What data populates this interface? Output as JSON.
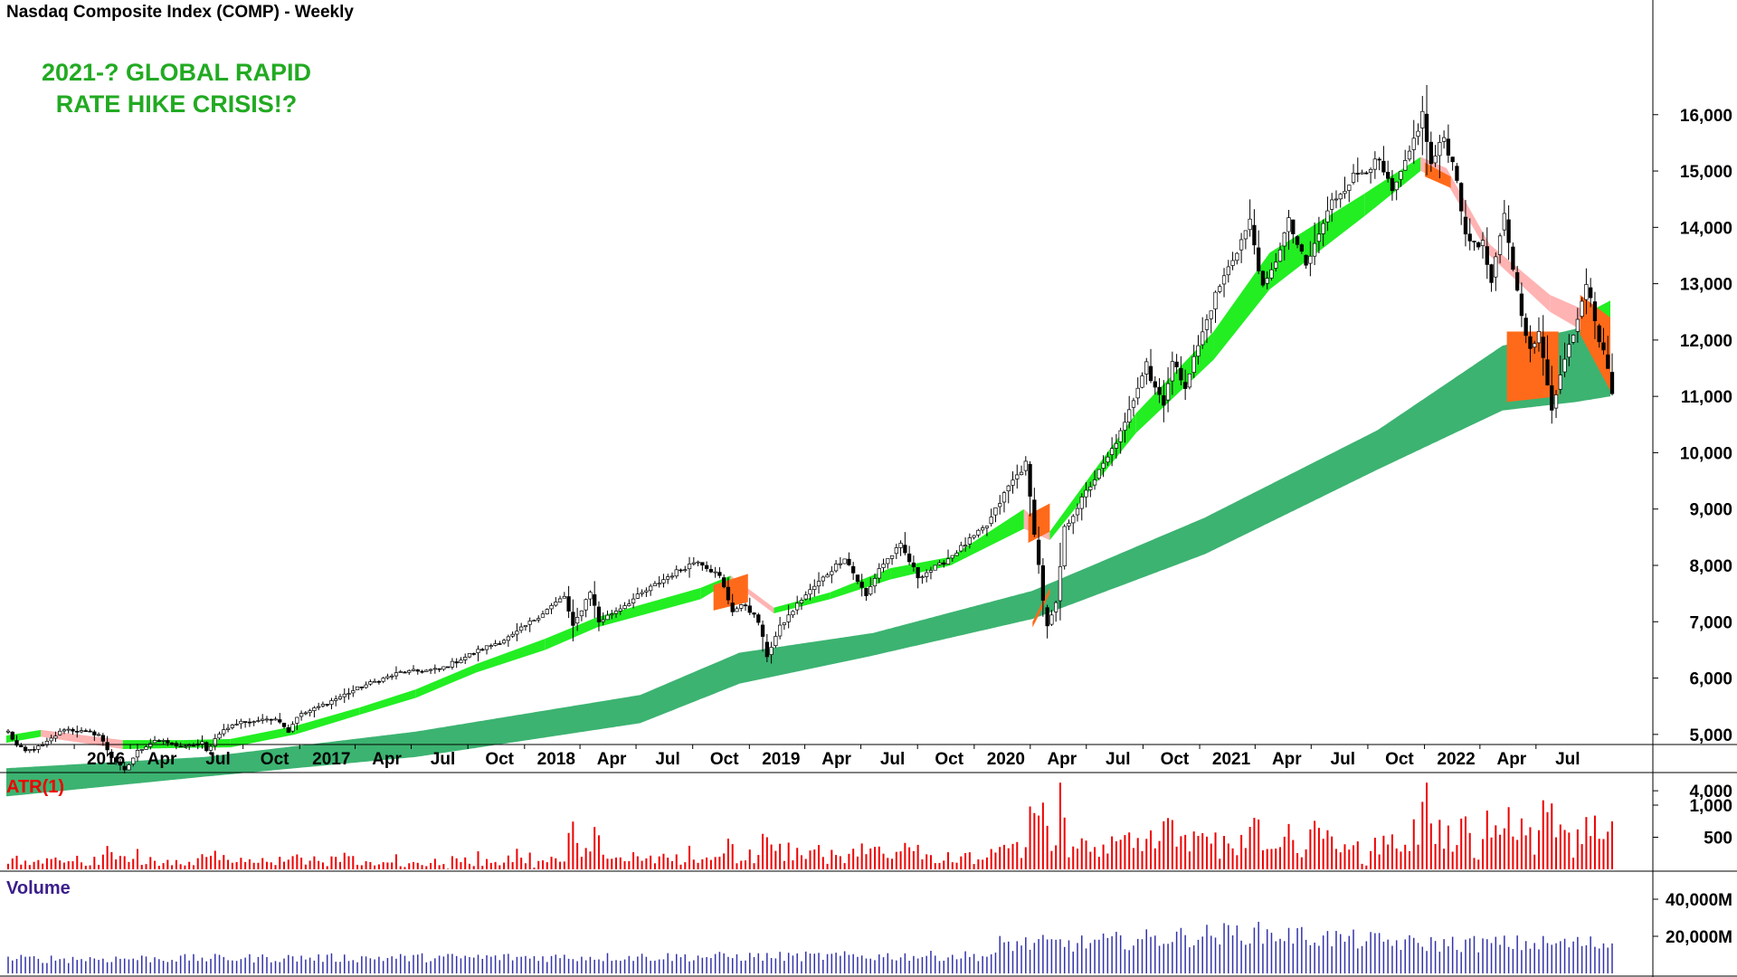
{
  "header": {
    "title": "Nasdaq Composite Index (COMP) - Weekly",
    "annotation_line1": "2021-? GLOBAL RAPID",
    "annotation_line2": "RATE HIKE CRISIS!?"
  },
  "colors": {
    "candle_up": "#ffffff",
    "candle_down": "#000000",
    "short_band_up": "#22ee22",
    "short_band_down": "#ffb3b3",
    "long_band_up": "#3cb371",
    "band_transition": "#ff6a1a",
    "atr_bars": "#ee0000",
    "volume_bars": "#3333aa",
    "annotation": "#22aa22",
    "atr_label": "#ee0000",
    "volume_label": "#3b1e8c"
  },
  "chart_data": [
    {
      "type": "candlestick",
      "title": "Nasdaq Composite Index (COMP) - Weekly",
      "x_tick_labels": [
        "2016",
        "Apr",
        "Jul",
        "Oct",
        "2017",
        "Apr",
        "Jul",
        "Oct",
        "2018",
        "Apr",
        "Jul",
        "Oct",
        "2019",
        "Apr",
        "Jul",
        "Oct",
        "2020",
        "Apr",
        "Jul",
        "Oct",
        "2021",
        "Apr",
        "Jul",
        "Oct",
        "2022",
        "Apr",
        "Jul"
      ],
      "y_tick_labels": [
        "4,000",
        "5,000",
        "6,000",
        "7,000",
        "8,000",
        "9,000",
        "10,000",
        "11,000",
        "12,000",
        "13,000",
        "14,000",
        "15,000",
        "16,000"
      ],
      "ylim": [
        3700,
        16700
      ],
      "grid": false,
      "close_anchors": {
        "dates": [
          "2015-08-07",
          "2015-08-21",
          "2015-09-04",
          "2015-10-02",
          "2015-11-06",
          "2015-12-04",
          "2016-01-01",
          "2016-01-22",
          "2016-02-12",
          "2016-03-04",
          "2016-04-01",
          "2016-04-22",
          "2016-05-20",
          "2016-06-17",
          "2016-06-24",
          "2016-07-15",
          "2016-08-19",
          "2016-09-09",
          "2016-09-23",
          "2016-10-21",
          "2016-11-04",
          "2016-11-18",
          "2016-12-16",
          "2017-03-03",
          "2017-05-05",
          "2017-07-07",
          "2017-09-01",
          "2017-11-03",
          "2018-01-26",
          "2018-02-09",
          "2018-03-09",
          "2018-03-23",
          "2018-04-13",
          "2018-05-18",
          "2018-07-13",
          "2018-08-31",
          "2018-10-05",
          "2018-10-26",
          "2018-11-16",
          "2018-12-07",
          "2018-12-21",
          "2019-01-11",
          "2019-02-15",
          "2019-04-26",
          "2019-05-31",
          "2019-06-21",
          "2019-07-26",
          "2019-08-23",
          "2019-09-27",
          "2019-10-25",
          "2019-12-13",
          "2020-01-17",
          "2020-02-14",
          "2020-02-28",
          "2020-03-13",
          "2020-03-20",
          "2020-04-03",
          "2020-04-17",
          "2020-05-22",
          "2020-06-26",
          "2020-07-24",
          "2020-08-28",
          "2020-09-04",
          "2020-09-25",
          "2020-10-09",
          "2020-10-30",
          "2020-11-20",
          "2020-12-18",
          "2021-01-22",
          "2021-02-12",
          "2021-03-05",
          "2021-03-19",
          "2021-04-16",
          "2021-05-14",
          "2021-06-25",
          "2021-07-30",
          "2021-08-27",
          "2021-09-10",
          "2021-10-01",
          "2021-10-22",
          "2021-11-19",
          "2021-12-03",
          "2021-12-24",
          "2022-01-14",
          "2022-01-28",
          "2022-02-25",
          "2022-03-11",
          "2022-04-01",
          "2022-04-22",
          "2022-05-13",
          "2022-05-27",
          "2022-06-17",
          "2022-07-08",
          "2022-07-29",
          "2022-08-12",
          "2022-08-19",
          "2022-09-02",
          "2022-09-16",
          "2022-09-23"
        ],
        "values": [
          5050,
          4800,
          4700,
          4800,
          5100,
          5050,
          5000,
          4600,
          4350,
          4700,
          4900,
          4850,
          4770,
          4850,
          4700,
          5030,
          5240,
          5200,
          5300,
          5250,
          5050,
          5320,
          5450,
          5850,
          6100,
          6150,
          6450,
          6750,
          7450,
          6900,
          7550,
          7000,
          7150,
          7400,
          7800,
          8100,
          7800,
          7200,
          7300,
          7000,
          6400,
          6900,
          7400,
          8150,
          7450,
          7950,
          8350,
          7800,
          8000,
          8250,
          8700,
          9400,
          9800,
          8600,
          7400,
          6900,
          7300,
          8650,
          9300,
          9900,
          10500,
          11650,
          11300,
          10900,
          11600,
          11200,
          11900,
          12800,
          13600,
          14100,
          12900,
          13200,
          14100,
          13300,
          14450,
          14900,
          15100,
          15150,
          14600,
          15100,
          16000,
          15100,
          15600,
          14900,
          13800,
          13700,
          13000,
          14200,
          12850,
          11800,
          12100,
          10800,
          11650,
          12400,
          13050,
          12800,
          12000,
          11550,
          11050
        ]
      },
      "bands": {
        "short_band_anchor_values": [
          [
            4850,
            4980
          ],
          [
            4960,
            5080
          ],
          [
            4740,
            4900
          ],
          [
            4760,
            4900
          ],
          [
            4770,
            4920
          ],
          [
            5000,
            5150
          ],
          [
            5350,
            5480
          ],
          [
            5650,
            5800
          ],
          [
            6100,
            6250
          ],
          [
            6500,
            6700
          ],
          [
            6900,
            7080
          ],
          [
            7400,
            7600
          ],
          [
            7720,
            7820
          ],
          [
            7150,
            7250
          ],
          [
            7400,
            7520
          ],
          [
            7750,
            7950
          ],
          [
            8000,
            8150
          ],
          [
            8650,
            9000
          ],
          [
            8450,
            8600
          ],
          [
            10350,
            10700
          ],
          [
            11650,
            12150
          ],
          [
            12900,
            13550
          ],
          [
            14200,
            14600
          ],
          [
            15000,
            15250
          ],
          [
            14800,
            15050
          ],
          [
            13500,
            13700
          ],
          [
            12500,
            12800
          ],
          [
            12100,
            12500
          ],
          [
            12300,
            12700
          ]
        ],
        "long_band_anchor_values": [
          [
            3900,
            4400
          ],
          [
            4250,
            4600
          ],
          [
            4600,
            5050
          ],
          [
            5200,
            5700
          ],
          [
            5900,
            6450
          ],
          [
            6400,
            6800
          ],
          [
            7050,
            7550
          ],
          [
            8200,
            8850
          ],
          [
            9700,
            10400
          ],
          [
            10750,
            11900
          ],
          [
            10900,
            12200
          ],
          [
            11000,
            12200
          ]
        ]
      }
    },
    {
      "type": "bar",
      "title": "ATR(1)",
      "y_tick_labels": [
        "500",
        "1,000"
      ]
    },
    {
      "type": "bar",
      "title": "Volume",
      "y_tick_labels": [
        "20,000M",
        "40,000M"
      ]
    }
  ]
}
